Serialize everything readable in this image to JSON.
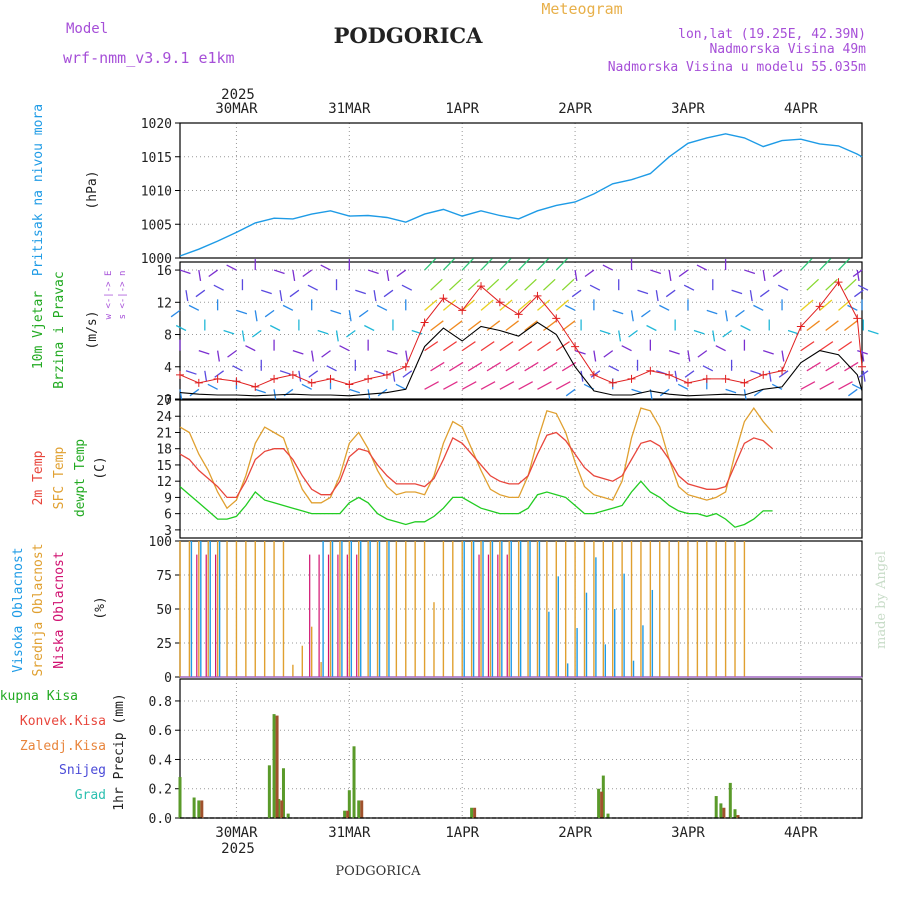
{
  "header": {
    "title": "PODGORICA",
    "subtitle": "Meteogram",
    "model_label": "Model",
    "model_name": "wrf-nmm_v3.9.1 e1km",
    "coords": "lon,lat (19.25E, 42.39N)",
    "elevation": "Nadmorska Visina 49m",
    "model_elevation": "Nadmorska Visina u modelu 55.035m",
    "footer": "PODGORICA",
    "credit": "made by Angel"
  },
  "colors": {
    "pressure": "#1e9be6",
    "t2m": "#e8463c",
    "sfc": "#e0a030",
    "dewpt": "#22cc22",
    "high_cloud": "#1e9be6",
    "mid_cloud": "#e0a030",
    "low_cloud": "#d01070",
    "total_precip": "#5a9a2a",
    "conv_precip": "#a0522d",
    "wind_speed": "#000000",
    "gust": "#e02020",
    "purple": "#a64fd8"
  },
  "chart_data": {
    "type": "line",
    "time_axis": {
      "year": "2025",
      "day_labels": [
        "30MAR",
        "31MAR",
        "1APR",
        "2APR",
        "3APR",
        "4APR"
      ],
      "start_hour": -12,
      "end_hour": 133
    },
    "pressure": {
      "ylabel": "Pritisak na nivou mora",
      "unit": "(hPa)",
      "ylim": [
        1000,
        1020
      ],
      "ticks": [
        1000,
        1005,
        1010,
        1015,
        1020
      ],
      "hours": [
        -12,
        -8,
        -4,
        0,
        4,
        8,
        12,
        16,
        20,
        24,
        28,
        32,
        36,
        40,
        44,
        48,
        52,
        56,
        60,
        64,
        68,
        72,
        76,
        80,
        84,
        88,
        92,
        96,
        100,
        104,
        108,
        112,
        116,
        120,
        124,
        128,
        132,
        133
      ],
      "values": [
        1000.3,
        1001.3,
        1002.5,
        1003.8,
        1005.2,
        1005.9,
        1005.8,
        1006.5,
        1007.0,
        1006.2,
        1006.3,
        1006.0,
        1005.3,
        1006.5,
        1007.2,
        1006.2,
        1007.0,
        1006.3,
        1005.8,
        1007.0,
        1007.8,
        1008.3,
        1009.5,
        1011.0,
        1011.6,
        1012.5,
        1015.0,
        1017.0,
        1017.8,
        1018.4,
        1017.8,
        1016.5,
        1017.4,
        1017.6,
        1016.9,
        1016.6,
        1015.4,
        1015.0
      ]
    },
    "wind": {
      "ylabel": "10m Vjetar",
      "ylabel2": "Brzina i Pravac",
      "unit": "(m/s)",
      "direction_key": "w <-|-> E",
      "direction_key2": "s <-|-> n",
      "ylim": [
        0,
        17
      ],
      "ticks": [
        0,
        4,
        8,
        12,
        16
      ],
      "hours": [
        -12,
        -8,
        -4,
        0,
        4,
        8,
        12,
        16,
        20,
        24,
        28,
        32,
        36,
        40,
        44,
        48,
        52,
        56,
        60,
        64,
        68,
        72,
        76,
        80,
        84,
        88,
        92,
        96,
        100,
        104,
        108,
        112,
        116,
        120,
        124,
        128,
        132,
        133
      ],
      "speed": [
        0.8,
        0.6,
        0.5,
        0.5,
        0.4,
        0.5,
        0.6,
        0.5,
        0.5,
        0.4,
        0.6,
        0.8,
        1.2,
        6.5,
        8.8,
        7.2,
        9.0,
        8.5,
        7.8,
        9.5,
        8.0,
        4.0,
        1.0,
        0.5,
        0.5,
        1.0,
        0.6,
        0.4,
        0.5,
        0.6,
        0.5,
        1.2,
        1.5,
        4.5,
        6.0,
        5.5,
        3.0,
        1.0
      ],
      "gust": [
        3.0,
        2.0,
        2.5,
        2.2,
        1.5,
        2.5,
        3.0,
        2.0,
        2.5,
        1.8,
        2.5,
        3.0,
        4.0,
        9.5,
        12.5,
        11.0,
        14.0,
        12.0,
        10.5,
        12.8,
        10.0,
        6.5,
        3.0,
        2.0,
        2.5,
        3.5,
        3.0,
        2.0,
        2.5,
        2.5,
        2.0,
        3.0,
        3.5,
        9.0,
        11.5,
        14.5,
        10.0,
        4.0
      ]
    },
    "temperature": {
      "ylabel": "2m Temp",
      "ylabel2": "SFC Temp",
      "ylabel3": "dewpt Temp",
      "unit": "(C)",
      "ylim": [
        1.5,
        27
      ],
      "ticks": [
        3,
        6,
        9,
        12,
        15,
        18,
        21,
        24,
        27
      ],
      "hours": [
        -12,
        -10,
        -8,
        -6,
        -4,
        -2,
        0,
        2,
        4,
        6,
        8,
        10,
        12,
        14,
        16,
        18,
        20,
        22,
        24,
        26,
        28,
        30,
        32,
        34,
        36,
        38,
        40,
        42,
        44,
        46,
        48,
        50,
        52,
        54,
        56,
        58,
        60,
        62,
        64,
        66,
        68,
        70,
        72,
        74,
        76,
        78,
        80,
        82,
        84,
        86,
        88,
        90,
        92,
        94,
        96,
        98,
        100,
        102,
        104,
        106,
        108,
        110,
        112,
        114,
        116,
        118,
        120,
        122,
        124,
        126,
        128,
        130,
        132,
        133
      ],
      "t2m": [
        17,
        16,
        14,
        12.5,
        11,
        9,
        9,
        12,
        16,
        17.5,
        18,
        18,
        16,
        13,
        10.5,
        9.5,
        9.5,
        12,
        16.5,
        18,
        17.5,
        15,
        13,
        11.5,
        11.5,
        11.5,
        11,
        12.5,
        16,
        20,
        19,
        17,
        15,
        13,
        12,
        11.5,
        11.5,
        13,
        17,
        20.5,
        21,
        19.5,
        17,
        14.5,
        13,
        12.5,
        12,
        13,
        16,
        19,
        19.5,
        18.5,
        16,
        13,
        11.5,
        11,
        10.5,
        10.5,
        11,
        15,
        19,
        20,
        19.5,
        18
      ],
      "sfc": [
        22,
        21,
        17,
        14,
        10,
        7,
        8.5,
        13,
        19,
        22,
        21,
        20,
        15,
        10.5,
        8,
        8,
        9,
        13,
        19,
        21,
        18,
        14,
        11,
        9.5,
        10,
        10,
        9.5,
        13,
        19,
        23,
        22,
        18,
        14,
        10.5,
        9.5,
        9,
        9,
        13,
        19.5,
        25,
        24.5,
        21,
        15.5,
        11,
        9.5,
        9,
        8.5,
        12,
        20,
        25.5,
        25,
        22,
        16,
        11,
        9.5,
        9,
        8.5,
        9,
        10,
        17,
        23,
        25.5,
        23,
        21
      ],
      "dewpt": [
        11,
        9.5,
        8,
        6.5,
        5,
        5,
        5.5,
        7.5,
        10,
        8.5,
        8,
        7.5,
        7,
        6.5,
        6,
        6,
        6,
        6,
        8,
        9,
        8,
        6,
        5,
        4.5,
        4,
        4.5,
        4.5,
        5.5,
        7,
        9,
        9,
        8,
        7,
        6.5,
        6,
        6,
        6,
        7,
        9.5,
        10,
        9.5,
        9,
        7.5,
        6,
        6,
        6.5,
        7,
        7.5,
        10,
        12,
        10,
        9,
        7.5,
        6.5,
        6,
        6,
        5.5,
        6,
        5,
        3.5,
        4,
        5,
        6.5,
        6.5
      ]
    },
    "clouds": {
      "ylabel": "Visoka Oblacnost",
      "ylabel2": "Srednja Oblacnost",
      "ylabel3": "Niska Oblacnost",
      "unit": "(%)",
      "ylim": [
        0,
        100
      ],
      "ticks": [
        0,
        25,
        50,
        75,
        100
      ]
    },
    "precip": {
      "legend": [
        "Ukupna Kisa",
        "Konvek.Kisa",
        "Zaledj.Kisa",
        "Snijeg",
        "Grad"
      ],
      "ylabel": "1hr Precip (mm)",
      "ylim": [
        0,
        0.95
      ],
      "ticks": [
        0,
        0.2,
        0.4,
        0.6,
        0.8
      ],
      "total": [
        [
          -12,
          0.28
        ],
        [
          -9,
          0.14
        ],
        [
          -8,
          0.12
        ],
        [
          7,
          0.36
        ],
        [
          8,
          0.71
        ],
        [
          9,
          0.13
        ],
        [
          10,
          0.34
        ],
        [
          11,
          0.03
        ],
        [
          23,
          0.05
        ],
        [
          24,
          0.19
        ],
        [
          25,
          0.49
        ],
        [
          26,
          0.12
        ],
        [
          50,
          0.07
        ],
        [
          77,
          0.2
        ],
        [
          78,
          0.29
        ],
        [
          79,
          0.03
        ],
        [
          102,
          0.15
        ],
        [
          103,
          0.1
        ],
        [
          105,
          0.24
        ],
        [
          106,
          0.06
        ]
      ],
      "convective": [
        [
          -12,
          0.0
        ],
        [
          -8,
          0.12
        ],
        [
          7,
          0.0
        ],
        [
          8,
          0.7
        ],
        [
          9,
          0.12
        ],
        [
          23,
          0.05
        ],
        [
          26,
          0.12
        ],
        [
          50,
          0.07
        ],
        [
          77,
          0.18
        ],
        [
          103,
          0.07
        ],
        [
          106,
          0.02
        ]
      ]
    }
  }
}
